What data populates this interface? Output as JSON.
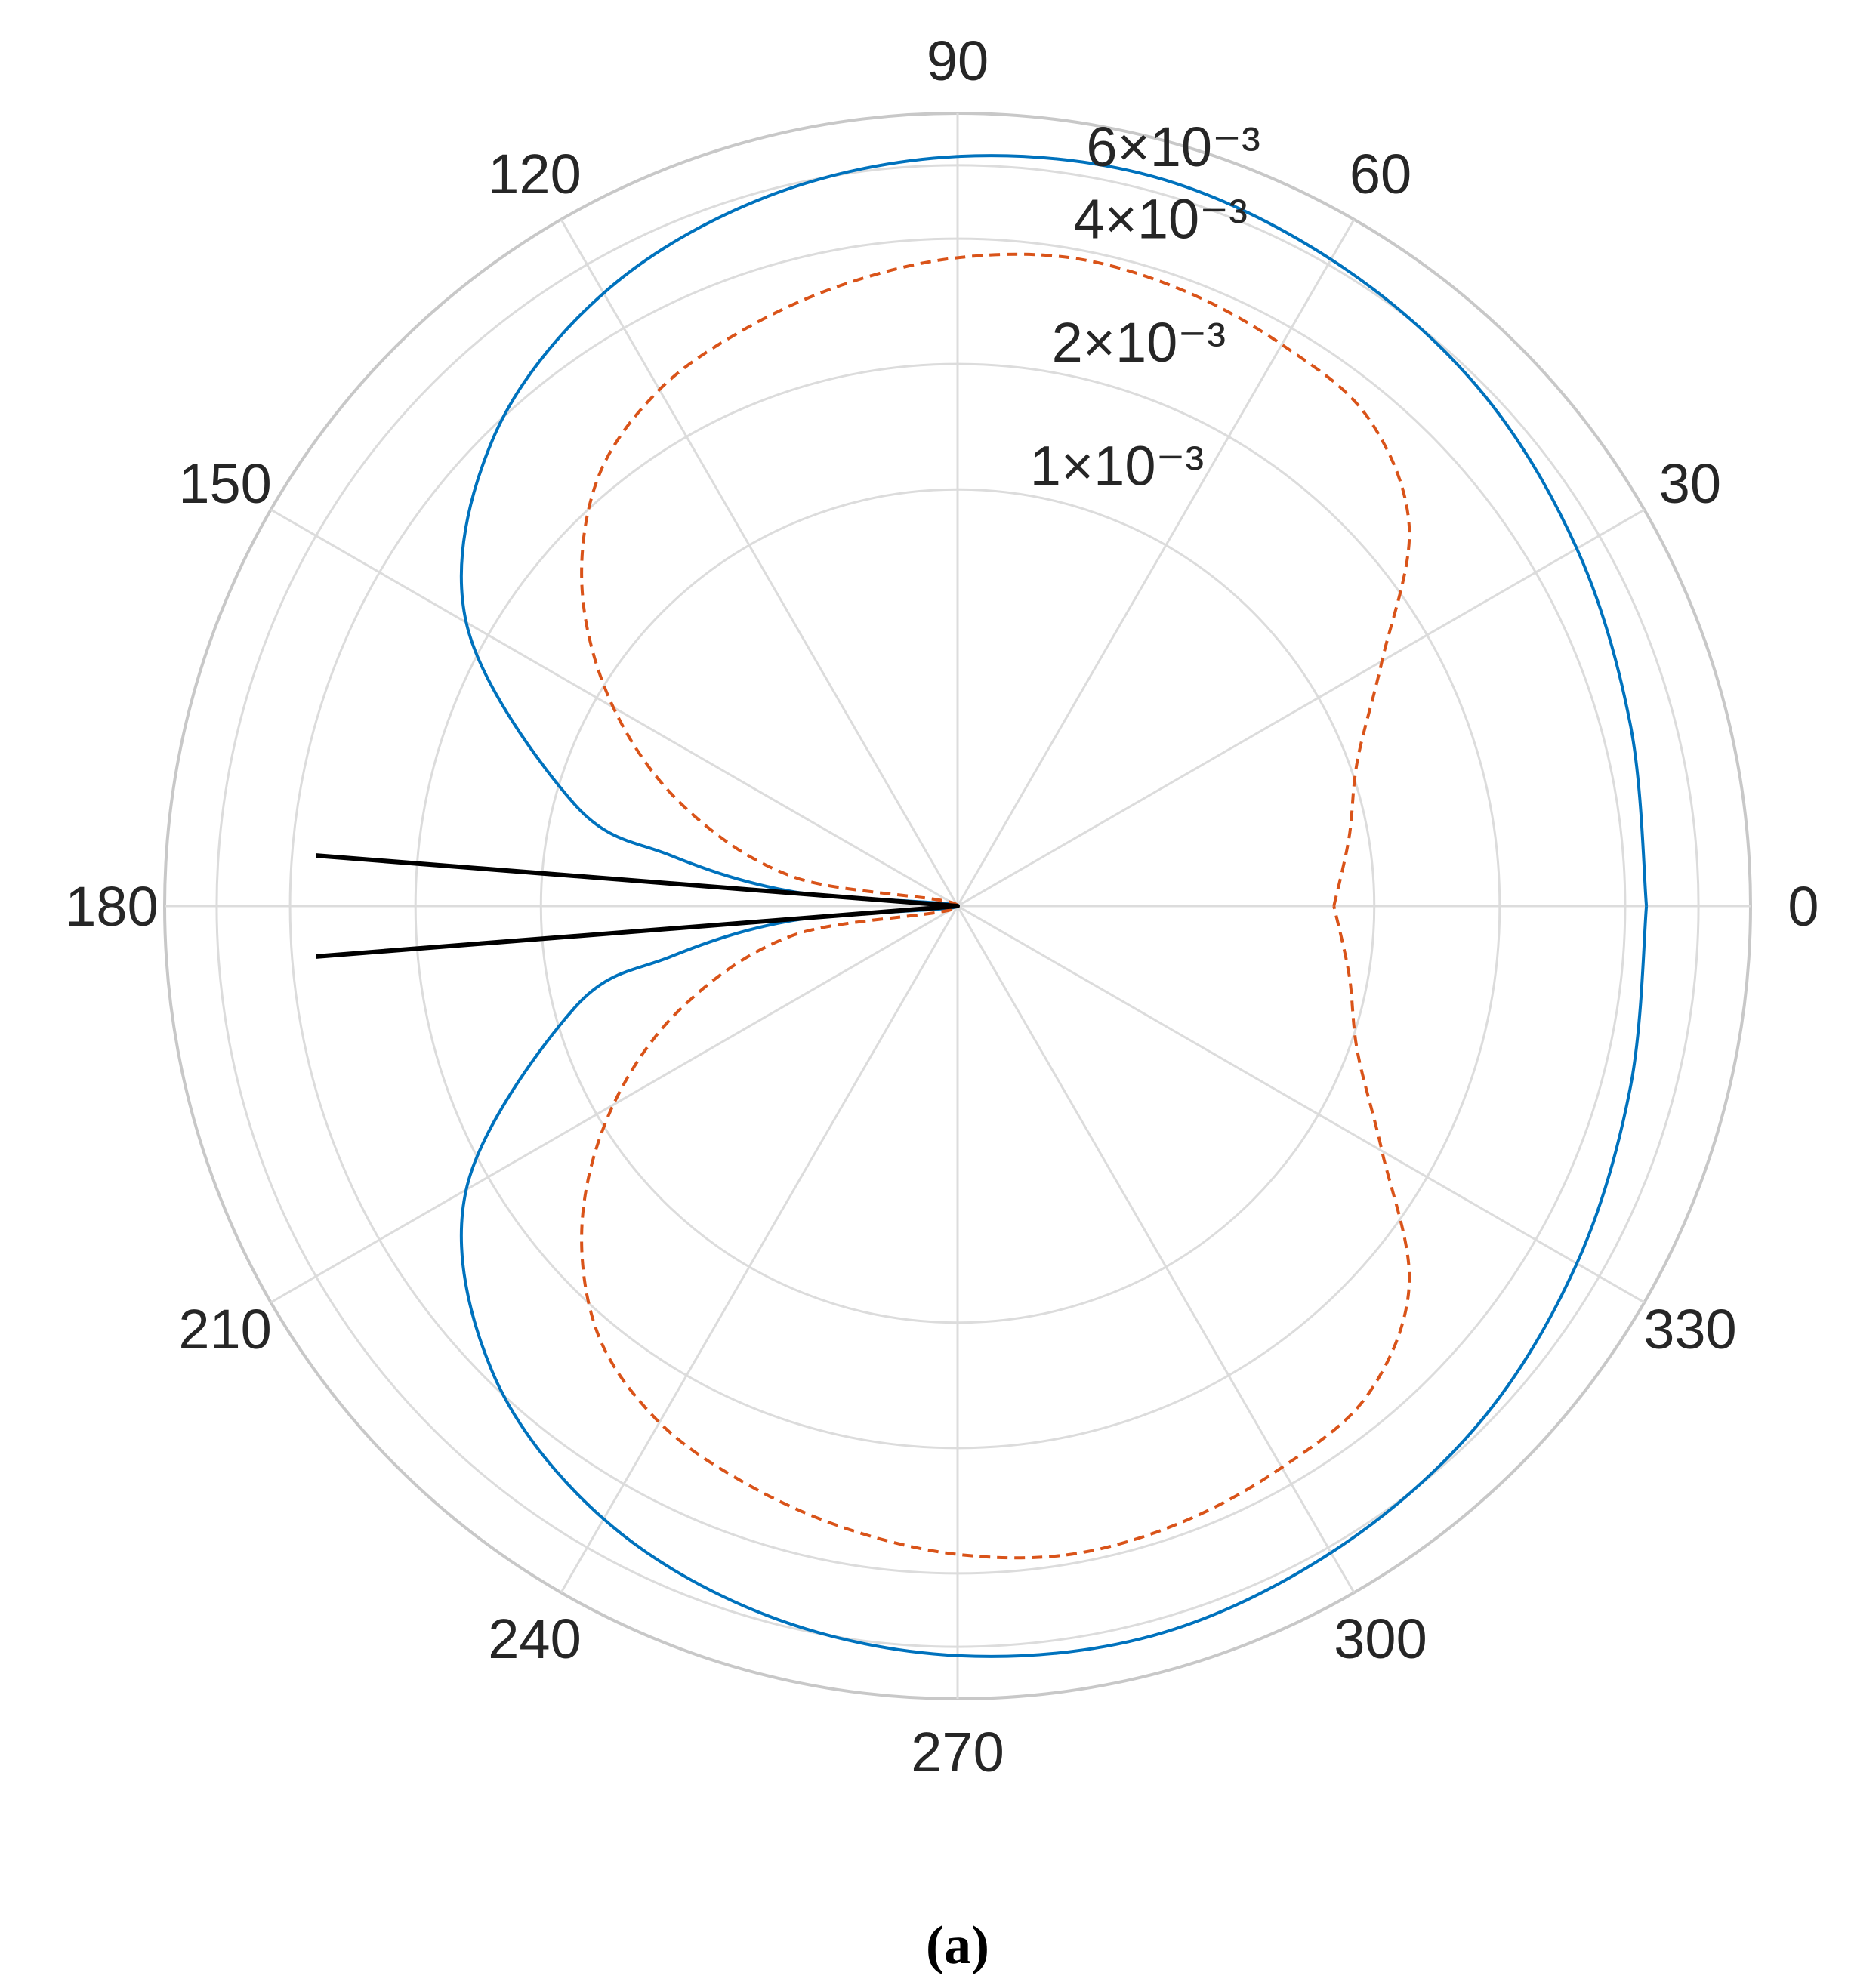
{
  "chart_data": {
    "type": "polar-line",
    "theta_unit": "degrees",
    "r_ticks": [
      {
        "value": 0.001,
        "label": "1×10⁻³"
      },
      {
        "value": 0.002,
        "label": "2×10⁻³"
      },
      {
        "value": 0.004,
        "label": "4×10⁻³"
      },
      {
        "value": 0.006,
        "label": "6×10⁻³"
      }
    ],
    "r_axis_scale": "log",
    "r_axis_min": 0.0001,
    "r_axis_max": 0.008,
    "theta_ticks": [
      0,
      30,
      60,
      90,
      120,
      150,
      180,
      210,
      240,
      270,
      300,
      330
    ],
    "theta_tick_labels": [
      "0",
      "30",
      "60",
      "90",
      "120",
      "150",
      "180",
      "210",
      "240",
      "270",
      "300",
      "330"
    ],
    "grid": true,
    "series": [
      {
        "color": "#0072BD",
        "style": "solid",
        "theta": [
          0,
          15,
          30,
          45,
          60,
          75,
          90,
          105,
          120,
          135,
          150,
          165,
          170,
          175,
          180,
          185,
          190,
          195,
          210,
          225,
          240,
          255,
          270,
          285,
          300,
          315,
          330,
          345,
          360
        ],
        "r": [
          0.0045,
          0.0047,
          0.0052,
          0.0058,
          0.0062,
          0.0065,
          0.0063,
          0.0058,
          0.005,
          0.0038,
          0.0023,
          0.0009,
          0.0005,
          0.00025,
          0.0001,
          0.00025,
          0.0005,
          0.0009,
          0.0023,
          0.0038,
          0.005,
          0.0058,
          0.0063,
          0.0065,
          0.0062,
          0.0058,
          0.0052,
          0.0047,
          0.0045
        ]
      },
      {
        "color": "#D95319",
        "style": "dashed",
        "theta": [
          0,
          10,
          20,
          30,
          40,
          50,
          60,
          70,
          80,
          90,
          100,
          110,
          120,
          130,
          140,
          150,
          160,
          170,
          180,
          190,
          200,
          210,
          220,
          230,
          240,
          250,
          260,
          270,
          280,
          290,
          300,
          310,
          320,
          330,
          340,
          350,
          360
        ],
        "r": [
          0.0008,
          0.0009,
          0.00105,
          0.0015,
          0.0026,
          0.0034,
          0.0036,
          0.00375,
          0.0038,
          0.0036,
          0.0033,
          0.003,
          0.0027,
          0.0022,
          0.0015,
          0.0009,
          0.0005,
          0.00025,
          0.0001,
          0.00025,
          0.0005,
          0.0009,
          0.0015,
          0.0022,
          0.0027,
          0.003,
          0.0033,
          0.0036,
          0.0038,
          0.00375,
          0.0036,
          0.0034,
          0.0026,
          0.0015,
          0.00105,
          0.0009,
          0.0008
        ]
      },
      {
        "color": "#000000",
        "style": "solid",
        "theta": [
          175.5,
          180,
          184.5
        ],
        "r": [
          0.0035,
          0.0001,
          0.0035
        ]
      }
    ],
    "caption": "(a)"
  }
}
